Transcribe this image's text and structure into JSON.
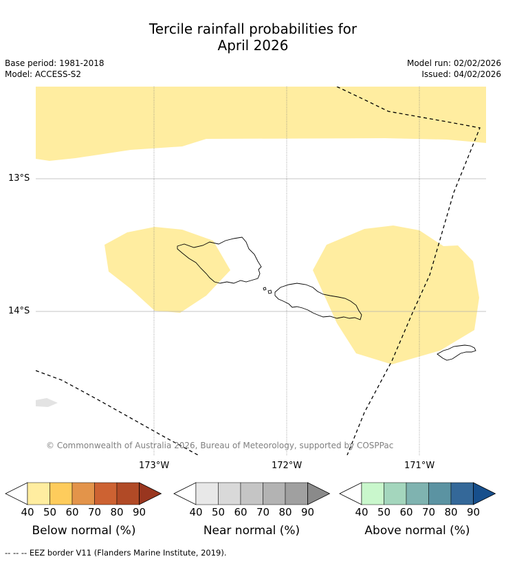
{
  "title_line1": "Tercile rainfall probabilities for",
  "title_line2": "April 2026",
  "meta": {
    "base_period": "Base period: 1981-2018",
    "model": "Model: ACCESS-S2",
    "model_run": "Model run: 02/02/2026",
    "issued": "Issued: 04/02/2026"
  },
  "map": {
    "lat_labels": [
      "13°S",
      "14°S"
    ],
    "lon_labels": [
      "173°W",
      "172°W",
      "171°W"
    ],
    "copyright": "© Commonwealth of Australia 2026, Bureau of Meteorology, supported by COSPPac",
    "colors": {
      "below_40_50": "#ffeda0",
      "land_outline": "#000000",
      "eez": "#000000",
      "grid": "#b0b0b0"
    }
  },
  "colorbars": [
    {
      "title": "Below normal (%)",
      "ticks": [
        "40",
        "50",
        "60",
        "70",
        "80",
        "90"
      ],
      "colors": [
        "#ffeda0",
        "#fecc5c",
        "#e3944a",
        "#cd6232",
        "#b14a26",
        "#99361f"
      ]
    },
    {
      "title": "Near normal (%)",
      "ticks": [
        "40",
        "50",
        "60",
        "70",
        "80",
        "90"
      ],
      "colors": [
        "#e8e8e8",
        "#d9d9d9",
        "#c5c5c5",
        "#b3b3b3",
        "#a0a0a0",
        "#8a8a8a"
      ]
    },
    {
      "title": "Above normal (%)",
      "ticks": [
        "40",
        "50",
        "60",
        "70",
        "80",
        "90"
      ],
      "colors": [
        "#c9f7cc",
        "#a4d6bd",
        "#7fb3b0",
        "#5b93a2",
        "#346899",
        "#174f8c"
      ]
    }
  ],
  "footer": "--  --  -- EEZ border V11 (Flanders Marine Institute, 2019)."
}
